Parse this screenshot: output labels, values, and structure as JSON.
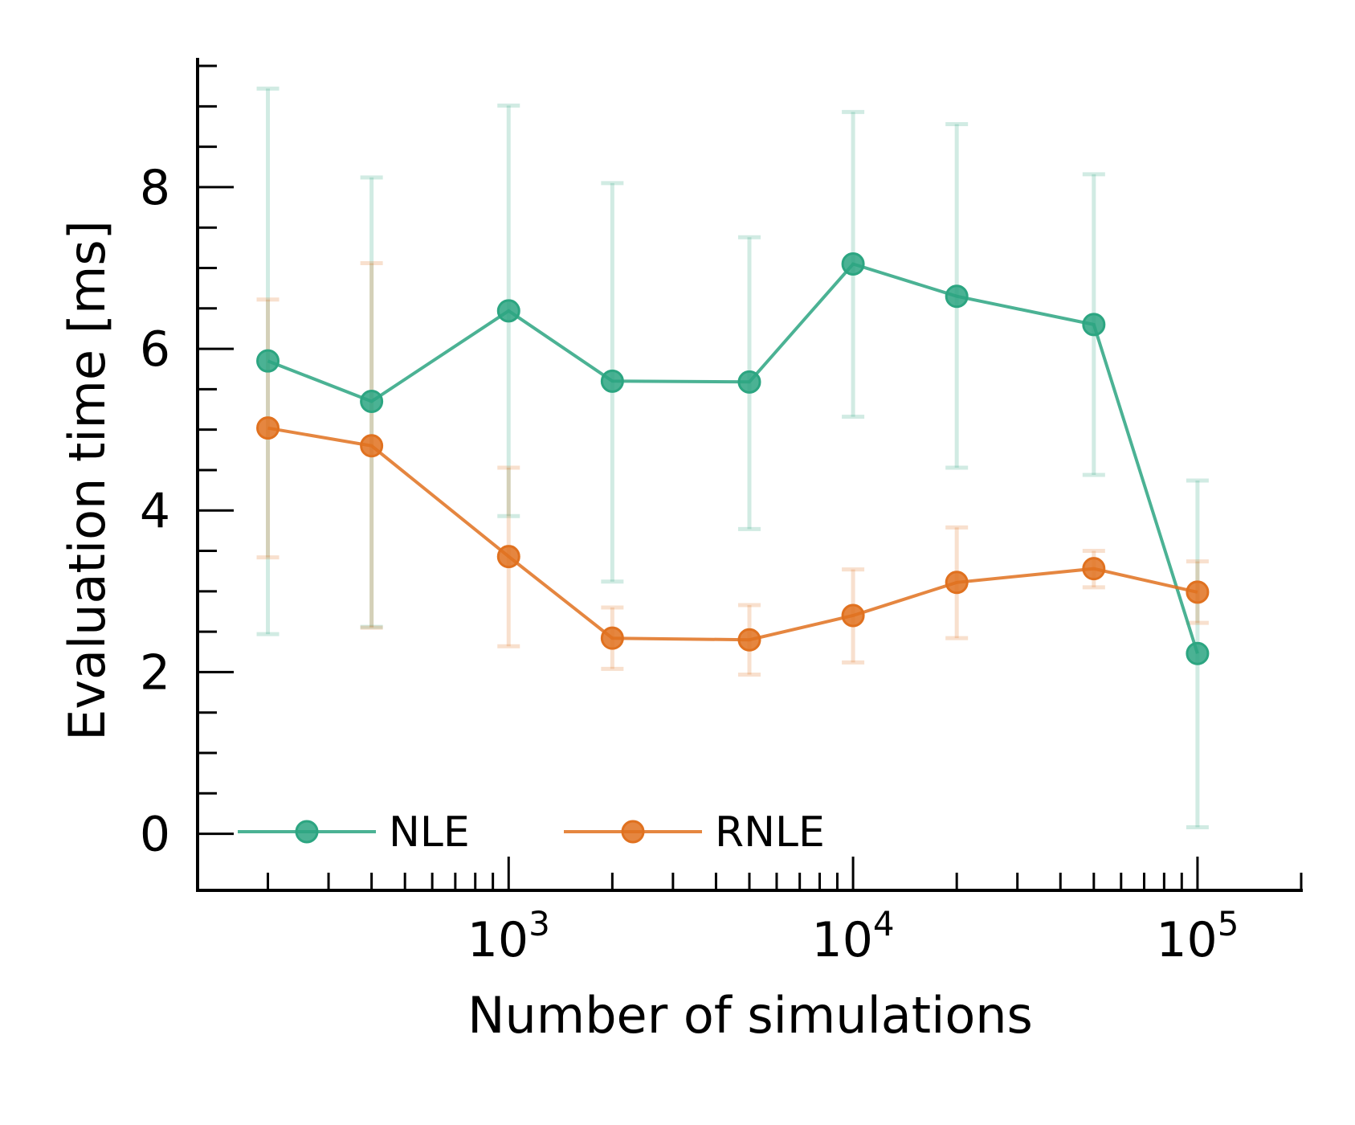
{
  "chart_data": {
    "type": "line",
    "title": "",
    "xlabel": "Number of simulations",
    "ylabel": "Evaluation time [ms]",
    "xscale": "log",
    "xlim": [
      125,
      200000
    ],
    "ylim": [
      -0.7,
      9.6
    ],
    "yticks": [
      "0",
      "2",
      "4",
      "6",
      "8"
    ],
    "xticks": [
      {
        "value": 1000,
        "base": "10",
        "exp": "3"
      },
      {
        "value": 10000,
        "base": "10",
        "exp": "4"
      },
      {
        "value": 100000,
        "base": "10",
        "exp": "5"
      }
    ],
    "x": [
      200,
      400,
      1000,
      2000,
      5000,
      10000,
      20000,
      50000,
      100000
    ],
    "series": [
      {
        "name": "NLE",
        "color": "#2ca581",
        "values": [
          5.85,
          5.35,
          6.47,
          5.6,
          5.59,
          7.05,
          6.65,
          6.3,
          2.23
        ],
        "err_low": [
          2.47,
          2.56,
          3.93,
          3.12,
          3.77,
          5.16,
          4.53,
          4.44,
          0.08
        ],
        "err_high": [
          9.22,
          8.12,
          9.01,
          8.05,
          7.38,
          8.93,
          8.78,
          8.16,
          4.37
        ]
      },
      {
        "name": "RNLE",
        "color": "#e0711f",
        "values": [
          5.02,
          4.8,
          3.43,
          2.42,
          2.4,
          2.7,
          3.11,
          3.28,
          2.99
        ],
        "err_low": [
          3.42,
          2.55,
          2.32,
          2.04,
          1.97,
          2.12,
          2.42,
          3.05,
          2.61
        ],
        "err_high": [
          6.61,
          7.06,
          4.53,
          2.8,
          2.83,
          3.27,
          3.79,
          3.5,
          3.37
        ]
      }
    ],
    "legend": {
      "position": "lower-left",
      "columns": 2,
      "entries": [
        "NLE",
        "RNLE"
      ]
    }
  }
}
